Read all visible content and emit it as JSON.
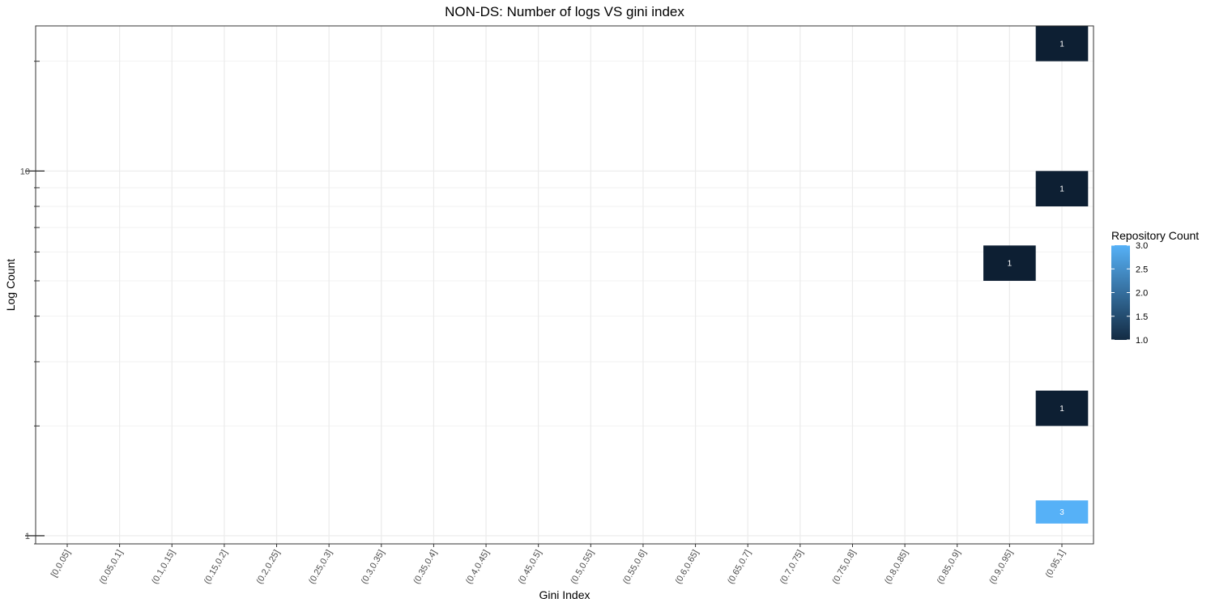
{
  "chart_data": {
    "type": "heatmap",
    "title": "NON-DS: Number of logs VS gini index",
    "xlabel": "Gini Index",
    "ylabel": "Log Count",
    "y_scale": "log10",
    "ylim": [
      0.95,
      25
    ],
    "y_major_ticks": [
      1,
      10
    ],
    "y_major_tick_labels": [
      "1",
      "10"
    ],
    "y_minor_ticks": [
      0.95,
      2,
      3,
      4,
      5,
      6,
      7,
      8,
      9,
      20
    ],
    "grid": true,
    "categories": [
      "[0,0.05]",
      "(0.05,0.1]",
      "(0.1,0.15]",
      "(0.15,0.2]",
      "(0.2,0.25]",
      "(0.25,0.3]",
      "(0.3,0.35]",
      "(0.35,0.4]",
      "(0.4,0.45]",
      "(0.45,0.5]",
      "(0.5,0.55]",
      "(0.55,0.6]",
      "(0.6,0.65]",
      "(0.65,0.7]",
      "(0.7,0.75]",
      "(0.75,0.8]",
      "(0.8,0.85]",
      "(0.85,0.9]",
      "(0.9,0.95]",
      "(0.95,1]"
    ],
    "cells": [
      {
        "x": "(0.95,1]",
        "y_low": 1.08,
        "y_high": 1.25,
        "count": 3,
        "label": "3"
      },
      {
        "x": "(0.95,1]",
        "y_low": 2.0,
        "y_high": 2.5,
        "count": 1,
        "label": "1"
      },
      {
        "x": "(0.9,0.95]",
        "y_low": 5.0,
        "y_high": 6.25,
        "count": 1,
        "label": "1"
      },
      {
        "x": "(0.95,1]",
        "y_low": 8.0,
        "y_high": 10.0,
        "count": 1,
        "label": "1"
      },
      {
        "x": "(0.95,1]",
        "y_low": 20.0,
        "y_high": 25.0,
        "count": 1,
        "label": "1"
      }
    ],
    "legend": {
      "title": "Repository Count",
      "placement": "right",
      "min": 1.0,
      "max": 3.0,
      "ticks": [
        "1.0",
        "1.5",
        "2.0",
        "2.5",
        "3.0"
      ],
      "color_low": "#132B43",
      "color_high": "#56B1F7",
      "cell_color_low": "#0d1f33"
    }
  }
}
